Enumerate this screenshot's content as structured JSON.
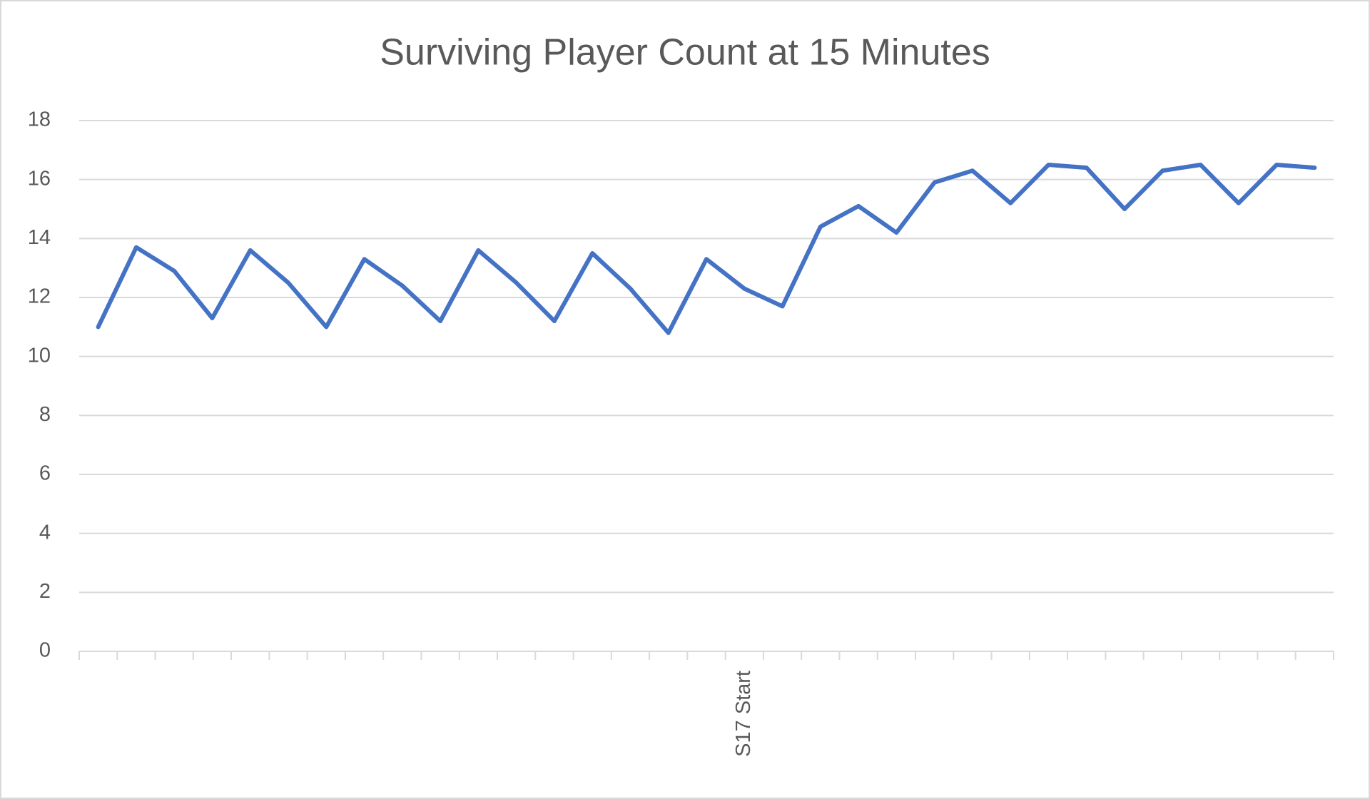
{
  "chart_data": {
    "type": "line",
    "title": "Surviving Player Count at 15 Minutes",
    "categories": [
      null,
      null,
      null,
      null,
      null,
      null,
      null,
      null,
      null,
      null,
      null,
      null,
      null,
      null,
      null,
      null,
      null,
      "S17 Start",
      null,
      null,
      null,
      null,
      null,
      null,
      null,
      null,
      null,
      null,
      null,
      null,
      null,
      null,
      null
    ],
    "values": [
      11.0,
      13.7,
      12.9,
      11.3,
      13.6,
      12.5,
      11.0,
      13.3,
      12.4,
      11.2,
      13.6,
      12.5,
      11.2,
      13.5,
      12.3,
      10.8,
      13.3,
      12.3,
      11.7,
      14.4,
      15.1,
      14.2,
      15.9,
      16.3,
      15.2,
      16.5,
      16.4,
      15.0,
      16.3,
      16.5,
      15.2,
      16.5,
      16.4
    ],
    "color": "#4472c4",
    "ylim": [
      0,
      18
    ],
    "yticks": [
      0,
      2,
      4,
      6,
      8,
      10,
      12,
      14,
      16,
      18
    ],
    "grid": true
  }
}
